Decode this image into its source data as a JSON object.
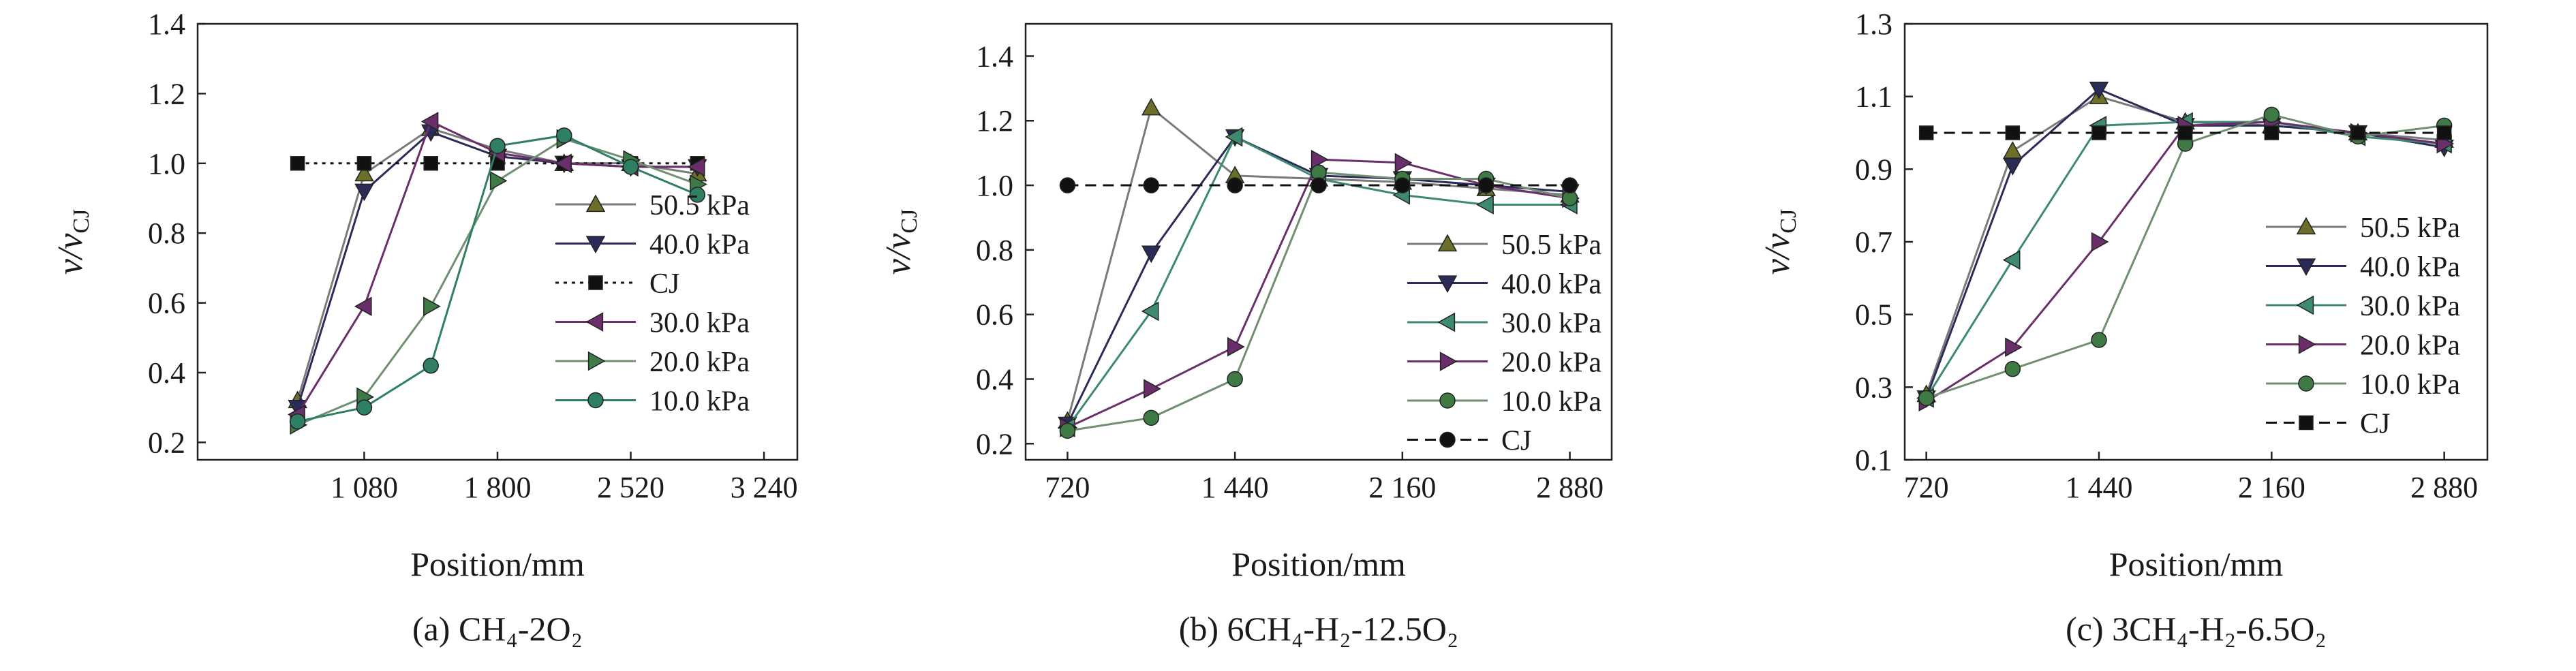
{
  "chart_data": [
    {
      "type": "line",
      "caption": "(a) CH₄-2O₂",
      "xlabel": "Position/mm",
      "ylabel": "v/v_CJ",
      "xlim": [
        180,
        3420
      ],
      "xticks": [
        1080,
        1800,
        2520,
        3240
      ],
      "xtick_labels": [
        "1 080",
        "1 800",
        "2 520",
        "3 240"
      ],
      "ylim": [
        0.15,
        1.4
      ],
      "yticks": [
        0.2,
        0.4,
        0.6,
        0.8,
        1.0,
        1.2,
        1.4
      ],
      "ytick_labels": [
        "0.2",
        "0.4",
        "0.6",
        "0.8",
        "1.0",
        "1.2",
        "1.4"
      ],
      "grid": false,
      "legend_placement": "lower-right",
      "series": [
        {
          "name": "50.5 kPa",
          "marker": "triangle-up",
          "dash": "solid",
          "color": "#6b6f2a",
          "line_color": "#7a7a7a",
          "x": [
            720,
            1080,
            1440,
            1800,
            2160,
            2520,
            2880
          ],
          "y": [
            0.32,
            0.97,
            1.1,
            1.04,
            1.0,
            1.0,
            0.97
          ]
        },
        {
          "name": "40.0 kPa",
          "marker": "triangle-down",
          "dash": "solid",
          "color": "#2b2b5a",
          "line_color": "#2b2b5a",
          "x": [
            720,
            1080,
            1440,
            1800,
            2160,
            2520,
            2880
          ],
          "y": [
            0.3,
            0.92,
            1.09,
            1.02,
            1.0,
            0.99,
            0.99
          ]
        },
        {
          "name": "CJ",
          "marker": "square",
          "dash": "dotted",
          "color": "#111111",
          "line_color": "#111111",
          "x": [
            720,
            1080,
            1440,
            1800,
            2160,
            2520,
            2880
          ],
          "y": [
            1.0,
            1.0,
            1.0,
            1.0,
            1.0,
            1.0,
            1.0
          ]
        },
        {
          "name": "30.0 kPa",
          "marker": "triangle-left",
          "dash": "solid",
          "color": "#6a2f6a",
          "line_color": "#6a2f6a",
          "x": [
            720,
            1080,
            1440,
            1800,
            2160,
            2520,
            2880
          ],
          "y": [
            0.28,
            0.59,
            1.12,
            1.03,
            1.0,
            0.99,
            0.99
          ]
        },
        {
          "name": "20.0 kPa",
          "marker": "triangle-right",
          "dash": "solid",
          "color": "#3d7a45",
          "line_color": "#6f8f70",
          "x": [
            720,
            1080,
            1440,
            1800,
            2160,
            2520,
            2880
          ],
          "y": [
            0.25,
            0.33,
            0.59,
            0.95,
            1.07,
            1.01,
            0.94
          ]
        },
        {
          "name": "10.0 kPa",
          "marker": "circle",
          "dash": "solid",
          "color": "#2f7f62",
          "line_color": "#2f7f62",
          "x": [
            720,
            1080,
            1440,
            1800,
            2160,
            2520,
            2880
          ],
          "y": [
            0.26,
            0.3,
            0.42,
            1.05,
            1.08,
            0.99,
            0.91
          ]
        }
      ]
    },
    {
      "type": "line",
      "caption": "(b) 6CH₄-H₂-12.5O₂",
      "xlabel": "Position/mm",
      "ylabel": "v/v_CJ",
      "xlim": [
        540,
        3060
      ],
      "xticks": [
        720,
        1440,
        2160,
        2880
      ],
      "xtick_labels": [
        "720",
        "1 440",
        "2 160",
        "2 880"
      ],
      "ylim": [
        0.15,
        1.5
      ],
      "yticks": [
        0.2,
        0.4,
        0.6,
        0.8,
        1.0,
        1.2,
        1.4
      ],
      "ytick_labels": [
        "0.2",
        "0.4",
        "0.6",
        "0.8",
        "1.0",
        "1.2",
        "1.4"
      ],
      "grid": false,
      "legend_placement": "lower-right",
      "series": [
        {
          "name": "50.5 kPa",
          "marker": "triangle-up",
          "dash": "solid",
          "color": "#6b6f2a",
          "line_color": "#7a7a7a",
          "x": [
            720,
            1080,
            1440,
            1800,
            2160,
            2520,
            2880
          ],
          "y": [
            0.27,
            1.24,
            1.03,
            1.02,
            1.01,
            0.99,
            0.97
          ]
        },
        {
          "name": "40.0 kPa",
          "marker": "triangle-down",
          "dash": "solid",
          "color": "#2b2b5a",
          "line_color": "#2b2b5a",
          "x": [
            720,
            1080,
            1440,
            1800,
            2160,
            2520,
            2880
          ],
          "y": [
            0.26,
            0.79,
            1.15,
            1.03,
            1.02,
            1.0,
            0.98
          ]
        },
        {
          "name": "30.0 kPa",
          "marker": "triangle-left",
          "dash": "solid",
          "color": "#3d8a6f",
          "line_color": "#3d8a6f",
          "x": [
            720,
            1080,
            1440,
            1800,
            2160,
            2520,
            2880
          ],
          "y": [
            0.25,
            0.61,
            1.15,
            1.02,
            0.97,
            0.94,
            0.94
          ]
        },
        {
          "name": "20.0 kPa",
          "marker": "triangle-right",
          "dash": "solid",
          "color": "#6a2f6a",
          "line_color": "#6a2f6a",
          "x": [
            720,
            1080,
            1440,
            1800,
            2160,
            2520,
            2880
          ],
          "y": [
            0.25,
            0.37,
            0.5,
            1.08,
            1.07,
            1.0,
            0.96
          ]
        },
        {
          "name": "10.0 kPa",
          "marker": "circle",
          "dash": "solid",
          "color": "#3f7a45",
          "line_color": "#6f8f70",
          "x": [
            720,
            1080,
            1440,
            1800,
            2160,
            2520,
            2880
          ],
          "y": [
            0.24,
            0.28,
            0.4,
            1.04,
            1.02,
            1.02,
            0.96
          ]
        },
        {
          "name": "CJ",
          "marker": "circle",
          "dash": "dashed",
          "color": "#111111",
          "line_color": "#111111",
          "x": [
            720,
            1080,
            1440,
            1800,
            2160,
            2520,
            2880
          ],
          "y": [
            1.0,
            1.0,
            1.0,
            1.0,
            1.0,
            1.0,
            1.0
          ]
        }
      ]
    },
    {
      "type": "line",
      "caption": "(c) 3CH₄-H₂-6.5O₂",
      "xlabel": "Position/mm",
      "ylabel": "v/v_CJ",
      "xlim": [
        630,
        3060
      ],
      "xticks": [
        720,
        1440,
        2160,
        2880
      ],
      "xtick_labels": [
        "720",
        "1 440",
        "2 160",
        "2 880"
      ],
      "ylim": [
        0.1,
        1.3
      ],
      "yticks": [
        0.1,
        0.3,
        0.5,
        0.7,
        0.9,
        1.1,
        1.3
      ],
      "ytick_labels": [
        "0.1",
        "0.3",
        "0.5",
        "0.7",
        "0.9",
        "1.1",
        "1.3"
      ],
      "grid": false,
      "legend_placement": "lower-right",
      "series": [
        {
          "name": "50.5 kPa",
          "marker": "triangle-up",
          "dash": "solid",
          "color": "#6b6f2a",
          "line_color": "#7a7a7a",
          "x": [
            720,
            1080,
            1440,
            1800,
            2160,
            2520,
            2880
          ],
          "y": [
            0.28,
            0.95,
            1.1,
            1.03,
            1.02,
            1.0,
            0.98
          ]
        },
        {
          "name": "40.0 kPa",
          "marker": "triangle-down",
          "dash": "solid",
          "color": "#2b2b5a",
          "line_color": "#2b2b5a",
          "x": [
            720,
            1080,
            1440,
            1800,
            2160,
            2520,
            2880
          ],
          "y": [
            0.27,
            0.91,
            1.12,
            1.02,
            1.02,
            1.0,
            0.96
          ]
        },
        {
          "name": "30.0 kPa",
          "marker": "triangle-left",
          "dash": "solid",
          "color": "#3d8a6f",
          "line_color": "#3d8a6f",
          "x": [
            720,
            1080,
            1440,
            1800,
            2160,
            2520,
            2880
          ],
          "y": [
            0.27,
            0.65,
            1.02,
            1.03,
            1.03,
            0.99,
            0.97
          ]
        },
        {
          "name": "20.0 kPa",
          "marker": "triangle-right",
          "dash": "solid",
          "color": "#6a2f6a",
          "line_color": "#6a2f6a",
          "x": [
            720,
            1080,
            1440,
            1800,
            2160,
            2520,
            2880
          ],
          "y": [
            0.26,
            0.41,
            0.7,
            1.02,
            1.03,
            1.0,
            0.97
          ]
        },
        {
          "name": "10.0 kPa",
          "marker": "circle",
          "dash": "solid",
          "color": "#3f7a45",
          "line_color": "#6f8f70",
          "x": [
            720,
            1080,
            1440,
            1800,
            2160,
            2520,
            2880
          ],
          "y": [
            0.27,
            0.35,
            0.43,
            0.97,
            1.05,
            0.99,
            1.02
          ]
        },
        {
          "name": "CJ",
          "marker": "square",
          "dash": "dashed",
          "color": "#111111",
          "line_color": "#111111",
          "x": [
            720,
            1080,
            1440,
            1800,
            2160,
            2520,
            2880
          ],
          "y": [
            1.0,
            1.0,
            1.0,
            1.0,
            1.0,
            1.0,
            1.0
          ]
        }
      ]
    }
  ]
}
